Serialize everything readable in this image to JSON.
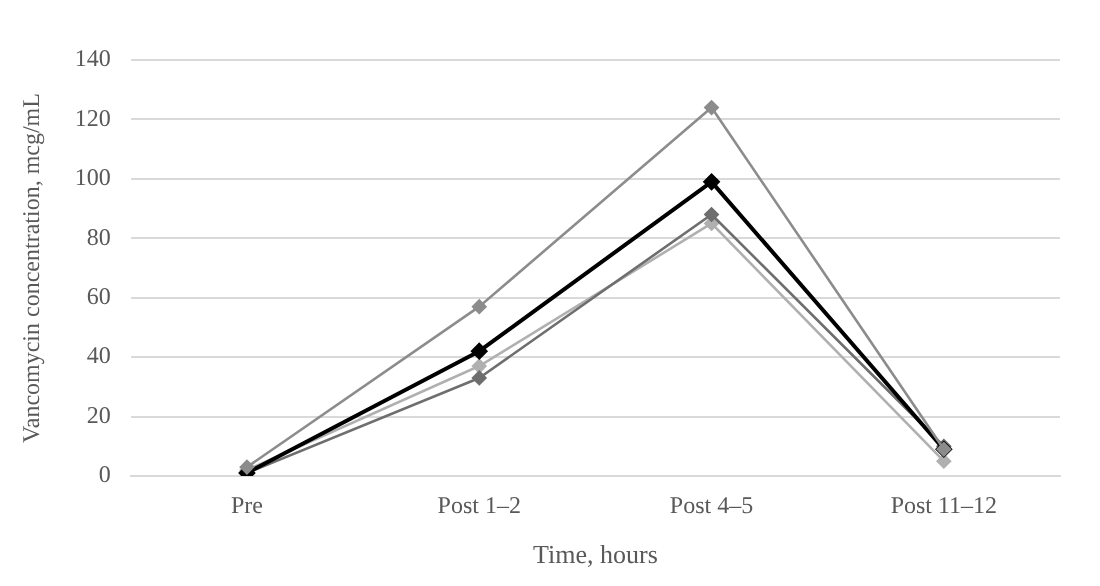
{
  "chart_data": {
    "type": "line",
    "xlabel": "Time, hours",
    "ylabel": "Vancomycin concentration, mcg/mL",
    "categories": [
      "Pre",
      "Post 1–2",
      "Post 4–5",
      "Post 11–12"
    ],
    "series": [
      {
        "color": "#8c8c8c",
        "values": [
          3,
          57,
          124,
          9
        ]
      },
      {
        "color": "#000000",
        "values": [
          1,
          42,
          99,
          9
        ]
      },
      {
        "color": "#6e6e6e",
        "values": [
          1,
          33,
          88,
          10
        ]
      },
      {
        "color": "#b0b0b0",
        "values": [
          2,
          37,
          85,
          5
        ]
      }
    ],
    "ylim": [
      0,
      140
    ],
    "yticks": [
      0,
      20,
      40,
      60,
      80,
      100,
      120,
      140
    ],
    "grid": "y",
    "legend": false,
    "marker": "diamond",
    "line_style": "solid"
  }
}
